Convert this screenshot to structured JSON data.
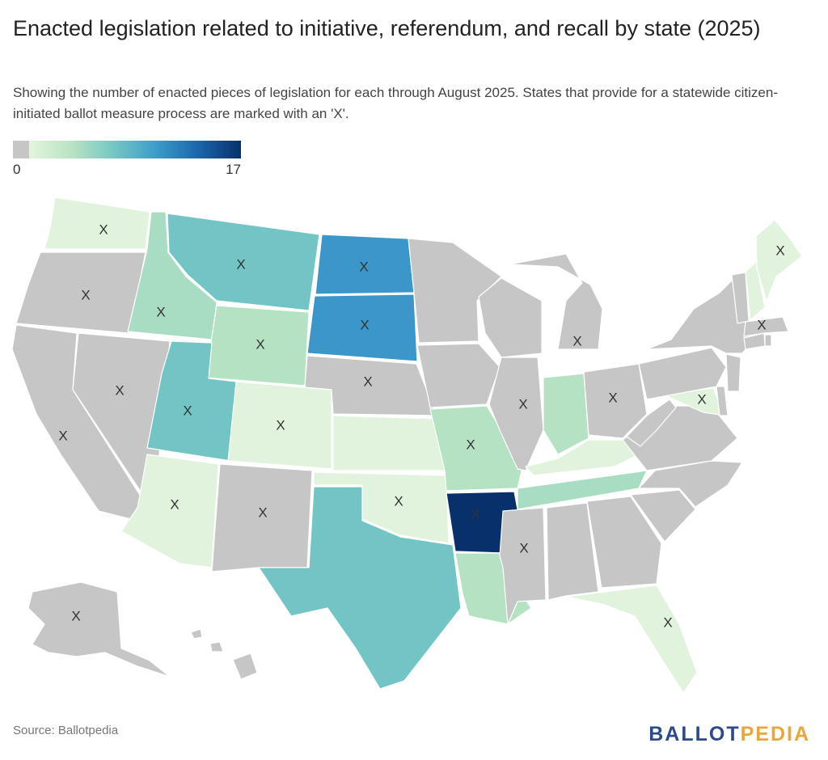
{
  "title": "Enacted legislation related to initiative, referendum, and recall by state (2025)",
  "subtitle": "Showing the number of enacted pieces of legislation for each through August 2025. States that provide for a statewide citizen-initiated ballot measure process are marked with an 'X'.",
  "legend": {
    "min": "0",
    "max": "17"
  },
  "marker": "X",
  "colors": {
    "zero": "#c6c6c6",
    "c1": "#e1f3dd",
    "c2": "#b4e2c2",
    "c3": "#a8dcc3",
    "c4": "#73c5c5",
    "c5": "#3b97c9",
    "c6": "#08306b"
  },
  "states": [
    {
      "id": "WA",
      "fill": "c1",
      "x_mark": true
    },
    {
      "id": "OR",
      "fill": "zero",
      "x_mark": true
    },
    {
      "id": "CA",
      "fill": "zero",
      "x_mark": true
    },
    {
      "id": "NV",
      "fill": "zero",
      "x_mark": true
    },
    {
      "id": "ID",
      "fill": "c3",
      "x_mark": true
    },
    {
      "id": "MT",
      "fill": "c4",
      "x_mark": true
    },
    {
      "id": "WY",
      "fill": "c2",
      "x_mark": true
    },
    {
      "id": "UT",
      "fill": "c4",
      "x_mark": true
    },
    {
      "id": "AZ",
      "fill": "c1",
      "x_mark": true
    },
    {
      "id": "CO",
      "fill": "c1",
      "x_mark": true
    },
    {
      "id": "NM",
      "fill": "zero",
      "x_mark": true
    },
    {
      "id": "ND",
      "fill": "c5",
      "x_mark": true
    },
    {
      "id": "SD",
      "fill": "c5",
      "x_mark": true
    },
    {
      "id": "NE",
      "fill": "zero",
      "x_mark": true
    },
    {
      "id": "KS",
      "fill": "c1",
      "x_mark": false
    },
    {
      "id": "OK",
      "fill": "c1",
      "x_mark": true
    },
    {
      "id": "TX",
      "fill": "c4",
      "x_mark": false
    },
    {
      "id": "MN",
      "fill": "zero",
      "x_mark": false
    },
    {
      "id": "IA",
      "fill": "zero",
      "x_mark": false
    },
    {
      "id": "MO",
      "fill": "c2",
      "x_mark": true
    },
    {
      "id": "AR",
      "fill": "c6",
      "x_mark": true
    },
    {
      "id": "LA",
      "fill": "c2",
      "x_mark": false
    },
    {
      "id": "WI",
      "fill": "zero",
      "x_mark": false
    },
    {
      "id": "IL",
      "fill": "zero",
      "x_mark": true
    },
    {
      "id": "MI",
      "fill": "zero",
      "x_mark": true
    },
    {
      "id": "IN",
      "fill": "c2",
      "x_mark": false
    },
    {
      "id": "OH",
      "fill": "zero",
      "x_mark": true
    },
    {
      "id": "KY",
      "fill": "c1",
      "x_mark": false
    },
    {
      "id": "TN",
      "fill": "c3",
      "x_mark": false
    },
    {
      "id": "MS",
      "fill": "zero",
      "x_mark": true
    },
    {
      "id": "AL",
      "fill": "zero",
      "x_mark": false
    },
    {
      "id": "GA",
      "fill": "zero",
      "x_mark": false
    },
    {
      "id": "FL",
      "fill": "c1",
      "x_mark": true
    },
    {
      "id": "SC",
      "fill": "zero",
      "x_mark": false
    },
    {
      "id": "NC",
      "fill": "zero",
      "x_mark": false
    },
    {
      "id": "VA",
      "fill": "zero",
      "x_mark": false
    },
    {
      "id": "WV",
      "fill": "zero",
      "x_mark": false
    },
    {
      "id": "MD",
      "fill": "c1",
      "x_mark": true
    },
    {
      "id": "DE",
      "fill": "zero",
      "x_mark": false
    },
    {
      "id": "PA",
      "fill": "zero",
      "x_mark": false
    },
    {
      "id": "NJ",
      "fill": "zero",
      "x_mark": false
    },
    {
      "id": "NY",
      "fill": "zero",
      "x_mark": false
    },
    {
      "id": "CT",
      "fill": "zero",
      "x_mark": false
    },
    {
      "id": "RI",
      "fill": "zero",
      "x_mark": false
    },
    {
      "id": "MA",
      "fill": "zero",
      "x_mark": true
    },
    {
      "id": "VT",
      "fill": "zero",
      "x_mark": false
    },
    {
      "id": "NH",
      "fill": "c1",
      "x_mark": false
    },
    {
      "id": "ME",
      "fill": "c1",
      "x_mark": true
    },
    {
      "id": "AK",
      "fill": "zero",
      "x_mark": true
    },
    {
      "id": "HI",
      "fill": "zero",
      "x_mark": false
    }
  ],
  "source": "Source: Ballotpedia",
  "brand": {
    "part1": "BALLOT",
    "part2": "PEDIA"
  }
}
